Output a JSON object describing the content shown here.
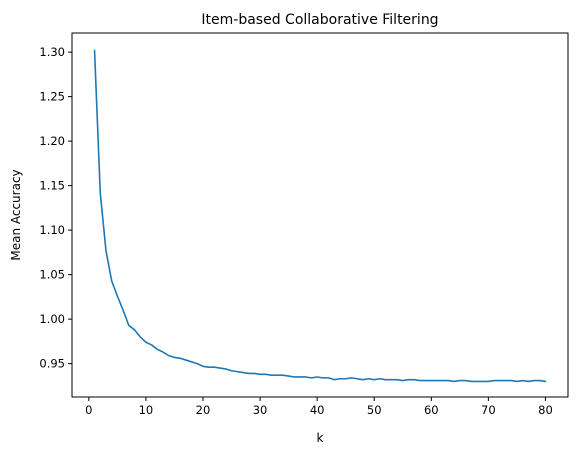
{
  "chart_data": {
    "type": "line",
    "title": "Item-based Collaborative Filtering",
    "xlabel": "k",
    "ylabel": "Mean Accuracy",
    "xlim": [
      -2.95,
      83.95
    ],
    "ylim": [
      0.9125,
      1.3215
    ],
    "xticks": [
      0,
      10,
      20,
      30,
      40,
      50,
      60,
      70,
      80
    ],
    "yticks": [
      0.95,
      1.0,
      1.05,
      1.1,
      1.15,
      1.2,
      1.25,
      1.3
    ],
    "grid": false,
    "line_color": "#1f77b4",
    "series": [
      {
        "x": [
          1,
          2,
          3,
          4,
          5,
          6,
          7,
          8,
          9,
          10,
          11,
          12,
          13,
          14,
          15,
          16,
          17,
          18,
          19,
          20,
          21,
          22,
          23,
          24,
          25,
          26,
          27,
          28,
          29,
          30,
          31,
          32,
          33,
          34,
          35,
          36,
          37,
          38,
          39,
          40,
          41,
          42,
          43,
          44,
          45,
          46,
          47,
          48,
          49,
          50,
          51,
          52,
          53,
          54,
          55,
          56,
          57,
          58,
          59,
          60,
          61,
          62,
          63,
          64,
          65,
          66,
          67,
          68,
          69,
          70,
          71,
          72,
          73,
          74,
          75,
          76,
          77,
          78,
          79,
          80
        ],
        "y": [
          1.302,
          1.142,
          1.077,
          1.043,
          1.026,
          1.01,
          0.993,
          0.988,
          0.98,
          0.974,
          0.971,
          0.966,
          0.963,
          0.959,
          0.957,
          0.956,
          0.954,
          0.952,
          0.95,
          0.947,
          0.946,
          0.946,
          0.945,
          0.944,
          0.942,
          0.941,
          0.94,
          0.939,
          0.939,
          0.938,
          0.938,
          0.937,
          0.937,
          0.937,
          0.936,
          0.935,
          0.935,
          0.935,
          0.934,
          0.935,
          0.934,
          0.934,
          0.932,
          0.933,
          0.933,
          0.934,
          0.933,
          0.932,
          0.933,
          0.932,
          0.933,
          0.932,
          0.932,
          0.932,
          0.931,
          0.932,
          0.932,
          0.931,
          0.931,
          0.931,
          0.931,
          0.931,
          0.931,
          0.93,
          0.931,
          0.931,
          0.93,
          0.93,
          0.93,
          0.93,
          0.931,
          0.931,
          0.931,
          0.931,
          0.93,
          0.931,
          0.93,
          0.931,
          0.931,
          0.93
        ]
      }
    ]
  }
}
